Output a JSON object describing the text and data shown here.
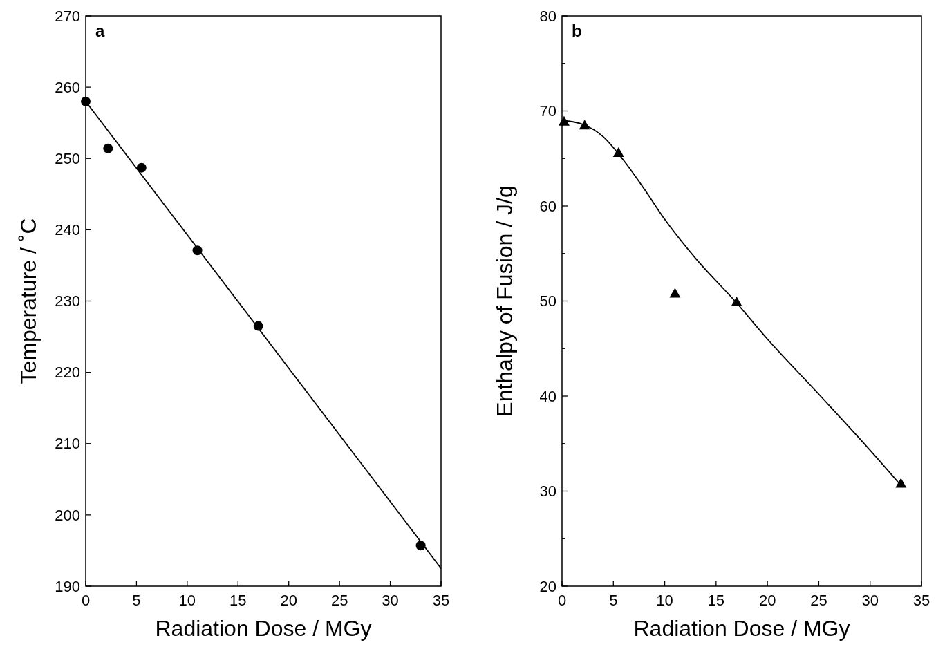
{
  "chart_data": [
    {
      "type": "scatter",
      "xlabel": "Radiation Dose / MGy",
      "ylabel": "Temperature / ˚C",
      "annotations": [
        "a"
      ],
      "xlim": [
        0,
        35
      ],
      "xticks": [
        0,
        5,
        10,
        15,
        20,
        25,
        30,
        35
      ],
      "ylim": [
        190,
        270
      ],
      "yticks": [
        190,
        200,
        210,
        220,
        230,
        240,
        250,
        260,
        270
      ],
      "grid": false,
      "series": [
        {
          "marker": "circle",
          "color": "#000000",
          "x": [
            0,
            2.2,
            5.5,
            11,
            17,
            33
          ],
          "values": [
            258,
            251.4,
            248.7,
            237.1,
            226.5,
            195.7
          ]
        },
        {
          "type": "line",
          "marker": "none",
          "color": "#000000",
          "x": [
            0,
            35
          ],
          "values": [
            258,
            192.5
          ]
        }
      ]
    },
    {
      "type": "scatter",
      "xlabel": "Radiation Dose / MGy",
      "ylabel": "Enthalpy of Fusion / J/g",
      "annotations": [
        "b"
      ],
      "xlim": [
        0,
        35
      ],
      "xticks": [
        0,
        5,
        10,
        15,
        20,
        25,
        30,
        35
      ],
      "ylim": [
        20,
        80
      ],
      "yticks": [
        20,
        {
          "value": 25,
          "label": null
        },
        30,
        {
          "value": 35,
          "label": null
        },
        40,
        {
          "value": 45,
          "label": null
        },
        50,
        {
          "value": 55,
          "label": null
        },
        60,
        {
          "value": 65,
          "label": null
        },
        70,
        {
          "value": 75,
          "label": null
        },
        80
      ],
      "grid": false,
      "series": [
        {
          "marker": "triangle",
          "color": "#000000",
          "x": [
            0.2,
            2.2,
            5.5,
            11,
            17,
            33
          ],
          "values": [
            68.9,
            68.5,
            65.6,
            50.8,
            49.9,
            30.8
          ]
        },
        {
          "type": "line",
          "marker": "none",
          "color": "#000000",
          "x": [
            0,
            2,
            4,
            6,
            8,
            10,
            13,
            17,
            20,
            25,
            30,
            33
          ],
          "values": [
            69,
            68.6,
            67.3,
            64.8,
            61.8,
            58.6,
            54.5,
            49.8,
            46,
            40.2,
            34.3,
            30.6
          ]
        }
      ]
    }
  ]
}
